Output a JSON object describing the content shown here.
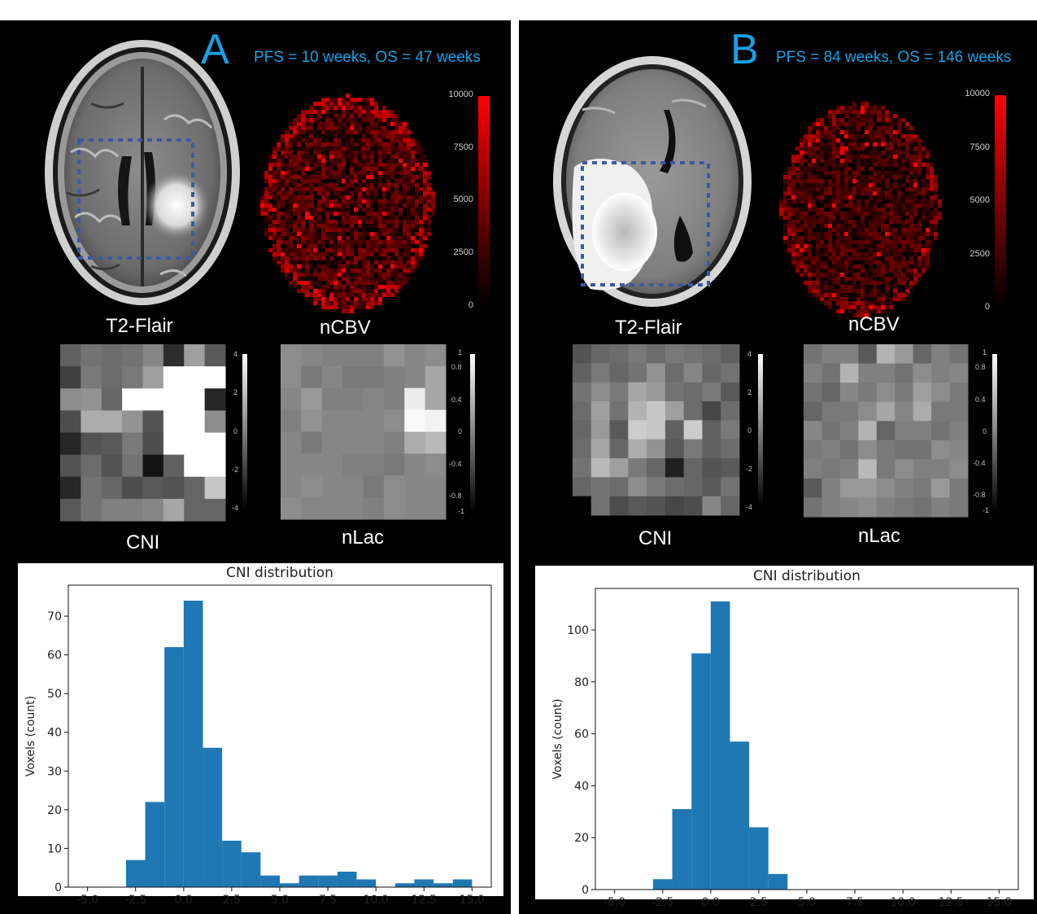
{
  "panels": [
    {
      "letter": "A",
      "survival": "PFS = 10 weeks, OS = 47 weeks",
      "labels": {
        "flair": "T2-Flair",
        "ncbv": "nCBV",
        "cni": "CNI",
        "nlac": "nLac"
      },
      "ncbv_colorbar_ticks": [
        "10000",
        "7500",
        "5000",
        "2500",
        "0"
      ],
      "cni_colorbar_ticks": [
        "4",
        "2",
        "0",
        "-2",
        "-4"
      ],
      "nlac_colorbar_ticks": [
        "1",
        "0.8",
        "0.4",
        "0",
        "-0.4",
        "-0.8",
        "-1"
      ],
      "cni_grid": [
        [
          -1.0,
          -0.4,
          -0.6,
          -0.4,
          0.2,
          -2.6,
          1.0,
          -1.2
        ],
        [
          -2.0,
          -0.2,
          -0.6,
          -0.2,
          1.0,
          4.0,
          4.0,
          4.0
        ],
        [
          0.4,
          0.6,
          -0.8,
          4.0,
          4.0,
          4.0,
          4.0,
          -2.8
        ],
        [
          -1.6,
          1.4,
          1.4,
          0.6,
          -1.4,
          4.0,
          4.0,
          0.4
        ],
        [
          -2.8,
          -1.4,
          -1.2,
          -0.2,
          -1.6,
          4.0,
          4.0,
          4.0
        ],
        [
          -1.4,
          -0.6,
          -1.4,
          -0.4,
          -3.4,
          -1.0,
          4.0,
          4.0
        ],
        [
          -2.8,
          -0.4,
          -0.8,
          -1.6,
          -1.2,
          -1.4,
          -0.8,
          2.2
        ],
        [
          -1.2,
          -0.4,
          0.0,
          0.0,
          0.2,
          1.2,
          -0.8,
          -0.8
        ]
      ],
      "nlac_grid": [
        [
          0.1,
          0.05,
          0.0,
          0.0,
          0.0,
          0.15,
          0.05,
          0.1
        ],
        [
          0.1,
          -0.05,
          0.05,
          -0.05,
          -0.05,
          0.0,
          0.05,
          0.3
        ],
        [
          0.05,
          0.2,
          0.0,
          0.0,
          0.05,
          0.0,
          0.85,
          0.3
        ],
        [
          0.0,
          0.15,
          0.05,
          0.05,
          0.05,
          0.1,
          0.95,
          0.9
        ],
        [
          0.05,
          -0.05,
          0.05,
          0.05,
          0.05,
          0.0,
          0.35,
          0.45
        ],
        [
          0.05,
          0.05,
          0.05,
          0.0,
          0.0,
          -0.05,
          0.05,
          0.1
        ],
        [
          0.05,
          0.1,
          0.05,
          0.05,
          -0.05,
          0.1,
          0.05,
          0.05
        ],
        [
          0.1,
          0.05,
          0.05,
          0.05,
          0.0,
          0.1,
          0.05,
          0.05
        ]
      ],
      "chart_data": {
        "type": "bar",
        "title": "CNI distribution",
        "xlabel": "",
        "ylabel": "Voxels (count)",
        "bin_edges": [
          -3.0,
          -2.0,
          -1.0,
          0.0,
          1.0,
          2.0,
          3.0,
          4.0,
          5.0,
          6.0,
          7.0,
          8.0,
          9.0,
          10.0,
          11.0,
          12.0,
          13.0,
          14.0,
          15.0
        ],
        "values": [
          7,
          22,
          62,
          74,
          36,
          12,
          9,
          3,
          1,
          3,
          3,
          4,
          2,
          0,
          1,
          2,
          1,
          2
        ],
        "xlim": [
          -6.0,
          16.0
        ],
        "ylim": [
          0,
          78
        ],
        "xticks": [
          -5.0,
          -2.5,
          0.0,
          2.5,
          5.0,
          7.5,
          10.0,
          12.5,
          15.0
        ],
        "xtick_labels": [
          "-5.0",
          "-2.5",
          "0.0",
          "2.5",
          "5.0",
          "7.5",
          "10.0",
          "12.5",
          "15.0"
        ],
        "yticks": [
          0,
          10,
          20,
          30,
          40,
          50,
          60,
          70
        ],
        "ytick_labels": [
          "0",
          "10",
          "20",
          "30",
          "40",
          "50",
          "60",
          "70"
        ],
        "color": "#1f77b4",
        "grid": false
      }
    },
    {
      "letter": "B",
      "survival": "PFS = 84 weeks, OS = 146 weeks",
      "labels": {
        "flair": "T2-Flair",
        "ncbv": "nCBV",
        "cni": "CNI",
        "nlac": "nLac"
      },
      "ncbv_colorbar_ticks": [
        "10000",
        "7500",
        "5000",
        "2500",
        "0"
      ],
      "cni_colorbar_ticks": [
        "4",
        "2",
        "0",
        "-2",
        "-4"
      ],
      "nlac_colorbar_ticks": [
        "1",
        "0.8",
        "0.4",
        "0",
        "-0.4",
        "-0.8",
        "-1"
      ],
      "cni_grid": [
        [
          -1.4,
          -0.8,
          -0.6,
          -0.2,
          -0.6,
          -0.2,
          -0.4,
          -0.6,
          -1.0
        ],
        [
          -1.0,
          -0.2,
          -0.8,
          -0.4,
          0.6,
          -0.6,
          0.2,
          -0.8,
          -0.4
        ],
        [
          -0.4,
          0.4,
          -0.2,
          1.2,
          0.8,
          -0.4,
          -0.6,
          -0.2,
          -1.2
        ],
        [
          -0.6,
          1.0,
          -0.4,
          1.6,
          2.2,
          1.0,
          -0.6,
          -1.8,
          -0.6
        ],
        [
          -0.8,
          0.8,
          -1.2,
          2.4,
          2.2,
          -1.0,
          2.4,
          -1.0,
          -0.2
        ],
        [
          -0.6,
          1.2,
          -0.8,
          1.4,
          0.6,
          -1.2,
          -0.2,
          -1.0,
          -0.6
        ],
        [
          -0.4,
          1.8,
          1.0,
          -0.2,
          -0.8,
          -3.0,
          -0.8,
          -1.4,
          -1.2
        ],
        [
          -0.8,
          -0.4,
          -0.6,
          0.4,
          -0.2,
          -0.6,
          -0.8,
          -1.2,
          -0.4
        ],
        [
          -4.0,
          -0.4,
          -1.6,
          -1.2,
          -1.4,
          -1.8,
          -1.6,
          0.2,
          -0.8
        ]
      ],
      "nlac_grid": [
        [
          -0.1,
          0.0,
          0.0,
          -0.3,
          0.4,
          0.2,
          -0.2,
          0.0,
          -0.1
        ],
        [
          0.0,
          -0.1,
          0.4,
          0.0,
          0.0,
          -0.1,
          0.1,
          0.0,
          0.05
        ],
        [
          -0.1,
          -0.2,
          0.05,
          -0.05,
          0.1,
          -0.05,
          0.25,
          0.1,
          -0.05
        ],
        [
          -0.2,
          -0.05,
          -0.05,
          0.1,
          0.3,
          0.05,
          0.35,
          -0.05,
          -0.05
        ],
        [
          0.05,
          -0.1,
          0.0,
          0.4,
          -0.2,
          0.0,
          0.0,
          -0.1,
          0.0
        ],
        [
          -0.05,
          0.0,
          -0.1,
          0.1,
          -0.05,
          -0.1,
          -0.1,
          0.1,
          0.05
        ],
        [
          0.0,
          -0.05,
          0.0,
          0.45,
          -0.05,
          0.1,
          0.0,
          0.0,
          0.1
        ],
        [
          -0.3,
          0.0,
          0.2,
          0.2,
          0.1,
          0.0,
          -0.05,
          0.2,
          -0.05
        ],
        [
          -0.1,
          0.0,
          0.05,
          0.1,
          0.0,
          -0.05,
          -0.1,
          0.0,
          -0.05
        ]
      ],
      "chart_data": {
        "type": "bar",
        "title": "CNI distribution",
        "xlabel": "",
        "ylabel": "Voxels (count)",
        "bin_edges": [
          -3.0,
          -2.0,
          -1.0,
          0.0,
          1.0,
          2.0,
          3.0,
          4.0
        ],
        "values": [
          4,
          31,
          91,
          111,
          57,
          24,
          6
        ],
        "xlim": [
          -6.0,
          16.0
        ],
        "ylim": [
          0,
          116
        ],
        "xticks": [
          -5.0,
          -2.5,
          0.0,
          2.5,
          5.0,
          7.5,
          10.0,
          12.5,
          15.0
        ],
        "xtick_labels": [
          "-5.0",
          "-2.5",
          "0.0",
          "2.5",
          "5.0",
          "7.5",
          "10.0",
          "12.5",
          "15.0"
        ],
        "yticks": [
          0,
          20,
          40,
          60,
          80,
          100
        ],
        "ytick_labels": [
          "0",
          "20",
          "40",
          "60",
          "80",
          "100"
        ],
        "color": "#1f77b4",
        "grid": false
      }
    }
  ]
}
